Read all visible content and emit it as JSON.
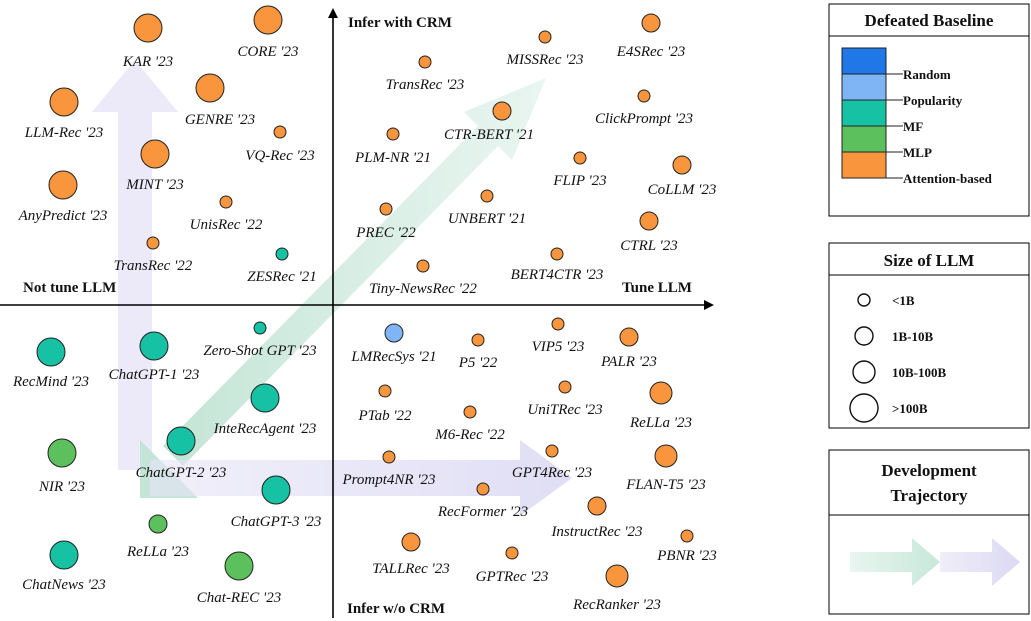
{
  "axes": {
    "top": "Infer with CRM",
    "bottom": "Infer w/o CRM",
    "left": "Not tune LLM",
    "right": "Tune LLM"
  },
  "colors": {
    "Random": "#1f77e8",
    "Popularity": "#7fb4f5",
    "MF": "#17c1a4",
    "MLP": "#5cc15c",
    "Attention-based": "#f8953d",
    "Trajectory-green": "#cfe9df",
    "Trajectory-purple": "#e3e1f5"
  },
  "legend": {
    "baseline": {
      "title": "Defeated Baseline",
      "items": [
        "Random",
        "Popularity",
        "MF",
        "MLP",
        "Attention-based"
      ]
    },
    "size": {
      "title": "Size of LLM",
      "items": [
        {
          "label": "<1B",
          "size": 1
        },
        {
          "label": "1B-10B",
          "size": 2
        },
        {
          "label": "10B-100B",
          "size": 3
        },
        {
          "label": ">100B",
          "size": 4
        }
      ]
    },
    "trajectory": {
      "title_line1": "Development",
      "title_line2": "Trajectory"
    }
  },
  "models": [
    {
      "name": "KAR '23",
      "baseline": "Attention-based",
      "size": 4
    },
    {
      "name": "CORE '23",
      "baseline": "Attention-based",
      "size": 4
    },
    {
      "name": "LLM-Rec '23",
      "baseline": "Attention-based",
      "size": 4
    },
    {
      "name": "GENRE '23",
      "baseline": "Attention-based",
      "size": 4
    },
    {
      "name": "VQ-Rec '23",
      "baseline": "Attention-based",
      "size": 1
    },
    {
      "name": "MINT '23",
      "baseline": "Attention-based",
      "size": 4
    },
    {
      "name": "AnyPredict '23",
      "baseline": "Attention-based",
      "size": 4
    },
    {
      "name": "UnisRec '22",
      "baseline": "Attention-based",
      "size": 1
    },
    {
      "name": "TransRec '22",
      "baseline": "Attention-based",
      "size": 1
    },
    {
      "name": "ZESRec '21",
      "baseline": "MF",
      "size": 1
    },
    {
      "name": "TransRec '23",
      "baseline": "Attention-based",
      "size": 1
    },
    {
      "name": "MISSRec '23",
      "baseline": "Attention-based",
      "size": 1
    },
    {
      "name": "E4SRec '23",
      "baseline": "Attention-based",
      "size": 2
    },
    {
      "name": "CTR-BERT '21",
      "baseline": "Attention-based",
      "size": 2
    },
    {
      "name": "ClickPrompt '23",
      "baseline": "Attention-based",
      "size": 1
    },
    {
      "name": "PLM-NR '21",
      "baseline": "Attention-based",
      "size": 1
    },
    {
      "name": "FLIP '23",
      "baseline": "Attention-based",
      "size": 1
    },
    {
      "name": "CoLLM '23",
      "baseline": "Attention-based",
      "size": 2
    },
    {
      "name": "UNBERT '21",
      "baseline": "Attention-based",
      "size": 1
    },
    {
      "name": "PREC '22",
      "baseline": "Attention-based",
      "size": 1
    },
    {
      "name": "CTRL '23",
      "baseline": "Attention-based",
      "size": 2
    },
    {
      "name": "BERT4CTR '23",
      "baseline": "Attention-based",
      "size": 1
    },
    {
      "name": "Tiny-NewsRec '22",
      "baseline": "Attention-based",
      "size": 1
    },
    {
      "name": "Zero-Shot GPT '23",
      "baseline": "MF",
      "size": 1
    },
    {
      "name": "RecMind '23",
      "baseline": "MF",
      "size": 4
    },
    {
      "name": "ChatGPT-1 '23",
      "baseline": "MF",
      "size": 4
    },
    {
      "name": "InteRecAgent '23",
      "baseline": "MF",
      "size": 4
    },
    {
      "name": "NIR '23",
      "baseline": "MLP",
      "size": 4
    },
    {
      "name": "ChatGPT-2 '23",
      "baseline": "MF",
      "size": 4
    },
    {
      "name": "ChatGPT-3 '23",
      "baseline": "MF",
      "size": 4
    },
    {
      "name": "ReLLa '23",
      "baseline": "MLP",
      "size": 2
    },
    {
      "name": "ChatNews '23",
      "baseline": "MF",
      "size": 4
    },
    {
      "name": "Chat-REC '23",
      "baseline": "MLP",
      "size": 4
    },
    {
      "name": "LMRecSys '21",
      "baseline": "Popularity",
      "size": 2
    },
    {
      "name": "P5 '22",
      "baseline": "Attention-based",
      "size": 1
    },
    {
      "name": "VIP5 '23",
      "baseline": "Attention-based",
      "size": 1
    },
    {
      "name": "PALR '23",
      "baseline": "Attention-based",
      "size": 2
    },
    {
      "name": "PTab '22",
      "baseline": "Attention-based",
      "size": 1
    },
    {
      "name": "M6-Rec '22",
      "baseline": "Attention-based",
      "size": 1
    },
    {
      "name": "UniTRec '23",
      "baseline": "Attention-based",
      "size": 1
    },
    {
      "name": "ReLLa '23",
      "baseline": "Attention-based",
      "size": 3
    },
    {
      "name": "Prompt4NR '23",
      "baseline": "Attention-based",
      "size": 1
    },
    {
      "name": "GPT4Rec '23",
      "baseline": "Attention-based",
      "size": 1
    },
    {
      "name": "FLAN-T5 '23",
      "baseline": "Attention-based",
      "size": 3
    },
    {
      "name": "RecFormer '23",
      "baseline": "Attention-based",
      "size": 1
    },
    {
      "name": "InstructRec '23",
      "baseline": "Attention-based",
      "size": 2
    },
    {
      "name": "PBNR '23",
      "baseline": "Attention-based",
      "size": 1
    },
    {
      "name": "TALLRec '23",
      "baseline": "Attention-based",
      "size": 2
    },
    {
      "name": "GPTRec '23",
      "baseline": "Attention-based",
      "size": 1
    },
    {
      "name": "RecRanker '23",
      "baseline": "Attention-based",
      "size": 3
    }
  ]
}
